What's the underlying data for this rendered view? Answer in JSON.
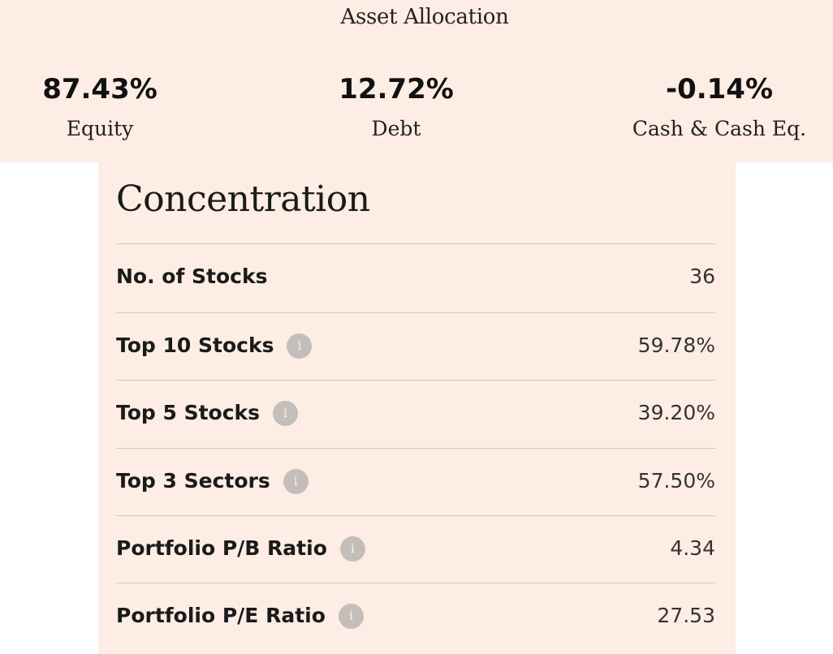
{
  "asset_allocation": {
    "title": "Asset Allocation",
    "items": [
      {
        "value": "87.43%",
        "label": "Equity"
      },
      {
        "value": "12.72%",
        "label": "Debt"
      },
      {
        "value": "-0.14%",
        "label": "Cash & Cash Eq."
      }
    ]
  },
  "concentration": {
    "title": "Concentration",
    "info_icon_glyph": "i",
    "rows": [
      {
        "label": "No. of Stocks",
        "value": "36",
        "has_info": false
      },
      {
        "label": "Top 10 Stocks",
        "value": "59.78%",
        "has_info": true
      },
      {
        "label": "Top 5 Stocks",
        "value": "39.20%",
        "has_info": true
      },
      {
        "label": "Top 3 Sectors",
        "value": "57.50%",
        "has_info": true
      },
      {
        "label": "Portfolio P/B Ratio",
        "value": "4.34",
        "has_info": true
      },
      {
        "label": "Portfolio P/E Ratio",
        "value": "27.53",
        "has_info": true
      }
    ]
  },
  "colors": {
    "panel_background": "#fdede4",
    "divider": "#cfc7c2",
    "info_icon": "#c4beba"
  }
}
